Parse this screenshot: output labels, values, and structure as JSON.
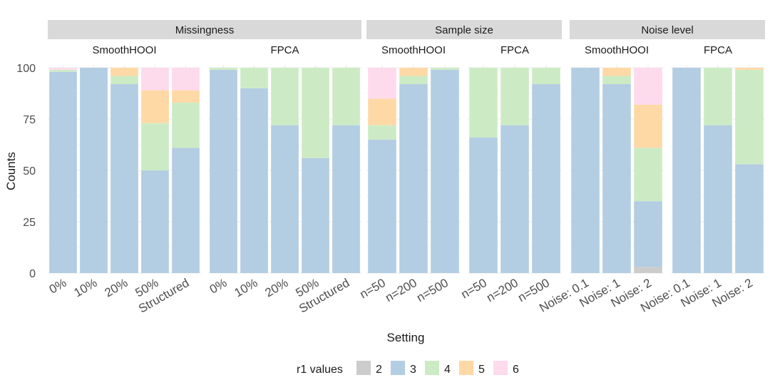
{
  "chart_data": {
    "type": "bar",
    "stacked": true,
    "title": "",
    "xlabel": "Setting",
    "ylabel": "Counts",
    "ylim": [
      0,
      100
    ],
    "yticks": [
      0,
      25,
      50,
      75,
      100
    ],
    "grid": true,
    "legend": {
      "title": "r1 values",
      "position": "bottom",
      "entries": [
        {
          "label": "2",
          "color": "#cccccc"
        },
        {
          "label": "3",
          "color": "#b3cde3"
        },
        {
          "label": "4",
          "color": "#ccebc5"
        },
        {
          "label": "5",
          "color": "#fed9a6"
        },
        {
          "label": "6",
          "color": "#fddaec"
        }
      ]
    },
    "groups": [
      {
        "label": "Missingness",
        "facets": [
          {
            "label": "SmoothHOOI",
            "bars": [
              {
                "category": "0%",
                "segments": [
                  0,
                  98,
                  1,
                  0,
                  1
                ]
              },
              {
                "category": "10%",
                "segments": [
                  0,
                  100,
                  0,
                  0,
                  0
                ]
              },
              {
                "category": "20%",
                "segments": [
                  0,
                  92,
                  4,
                  4,
                  0
                ]
              },
              {
                "category": "50%",
                "segments": [
                  0,
                  50,
                  23,
                  16,
                  11
                ]
              },
              {
                "category": "Structured",
                "segments": [
                  0,
                  61,
                  22,
                  6,
                  11
                ]
              }
            ]
          },
          {
            "label": "FPCA",
            "bars": [
              {
                "category": "0%",
                "segments": [
                  0,
                  99,
                  1,
                  0,
                  0
                ]
              },
              {
                "category": "10%",
                "segments": [
                  0,
                  90,
                  10,
                  0,
                  0
                ]
              },
              {
                "category": "20%",
                "segments": [
                  0,
                  72,
                  28,
                  0,
                  0
                ]
              },
              {
                "category": "50%",
                "segments": [
                  0,
                  56,
                  44,
                  0,
                  0
                ]
              },
              {
                "category": "Structured",
                "segments": [
                  0,
                  72,
                  28,
                  0,
                  0
                ]
              }
            ]
          }
        ]
      },
      {
        "label": "Sample size",
        "facets": [
          {
            "label": "SmoothHOOI",
            "bars": [
              {
                "category": "n=50",
                "segments": [
                  0,
                  65,
                  7,
                  13,
                  15
                ]
              },
              {
                "category": "n=200",
                "segments": [
                  0,
                  92,
                  4,
                  4,
                  0
                ]
              },
              {
                "category": "n=500",
                "segments": [
                  0,
                  99,
                  1,
                  0,
                  0
                ]
              }
            ]
          },
          {
            "label": "FPCA",
            "bars": [
              {
                "category": "n=50",
                "segments": [
                  0,
                  66,
                  34,
                  0,
                  0
                ]
              },
              {
                "category": "n=200",
                "segments": [
                  0,
                  72,
                  28,
                  0,
                  0
                ]
              },
              {
                "category": "n=500",
                "segments": [
                  0,
                  92,
                  8,
                  0,
                  0
                ]
              }
            ]
          }
        ]
      },
      {
        "label": "Noise level",
        "facets": [
          {
            "label": "SmoothHOOI",
            "bars": [
              {
                "category": "Noise: 0.1",
                "segments": [
                  0,
                  100,
                  0,
                  0,
                  0
                ]
              },
              {
                "category": "Noise: 1",
                "segments": [
                  0,
                  92,
                  4,
                  4,
                  0
                ]
              },
              {
                "category": "Noise: 2",
                "segments": [
                  3,
                  32,
                  26,
                  21,
                  18
                ]
              }
            ]
          },
          {
            "label": "FPCA",
            "bars": [
              {
                "category": "Noise: 0.1",
                "segments": [
                  0,
                  100,
                  0,
                  0,
                  0
                ]
              },
              {
                "category": "Noise: 1",
                "segments": [
                  0,
                  72,
                  28,
                  0,
                  0
                ]
              },
              {
                "category": "Noise: 2",
                "segments": [
                  0,
                  53,
                  46,
                  1,
                  0
                ]
              }
            ]
          }
        ]
      }
    ]
  }
}
